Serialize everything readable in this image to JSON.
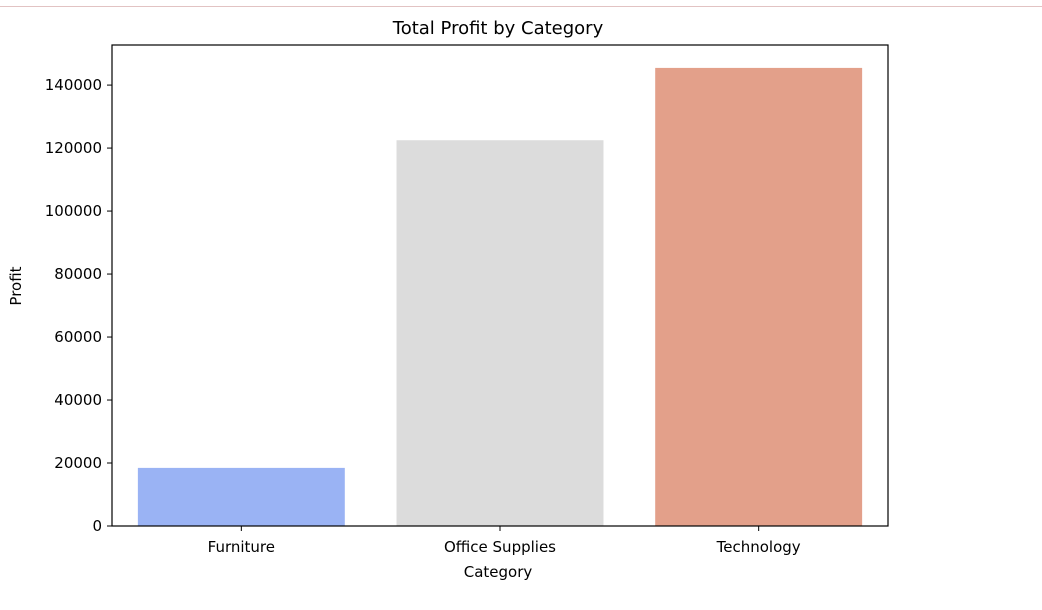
{
  "chart_data": {
    "type": "bar",
    "title": "Total Profit by Category",
    "xlabel": "Category",
    "ylabel": "Profit",
    "categories": [
      "Furniture",
      "Office Supplies",
      "Technology"
    ],
    "values": [
      18451.27,
      122490.8,
      145454.95
    ],
    "colors": [
      "#9ab3f4",
      "#dcdcdc",
      "#e3a08a"
    ],
    "ylim": [
      0,
      152727.7
    ],
    "yticks": [
      0,
      20000,
      40000,
      60000,
      80000,
      100000,
      120000,
      140000
    ],
    "ytick_labels": [
      "0",
      "20000",
      "40000",
      "60000",
      "80000",
      "100000",
      "120000",
      "140000"
    ],
    "grid": false,
    "legend": "none"
  }
}
